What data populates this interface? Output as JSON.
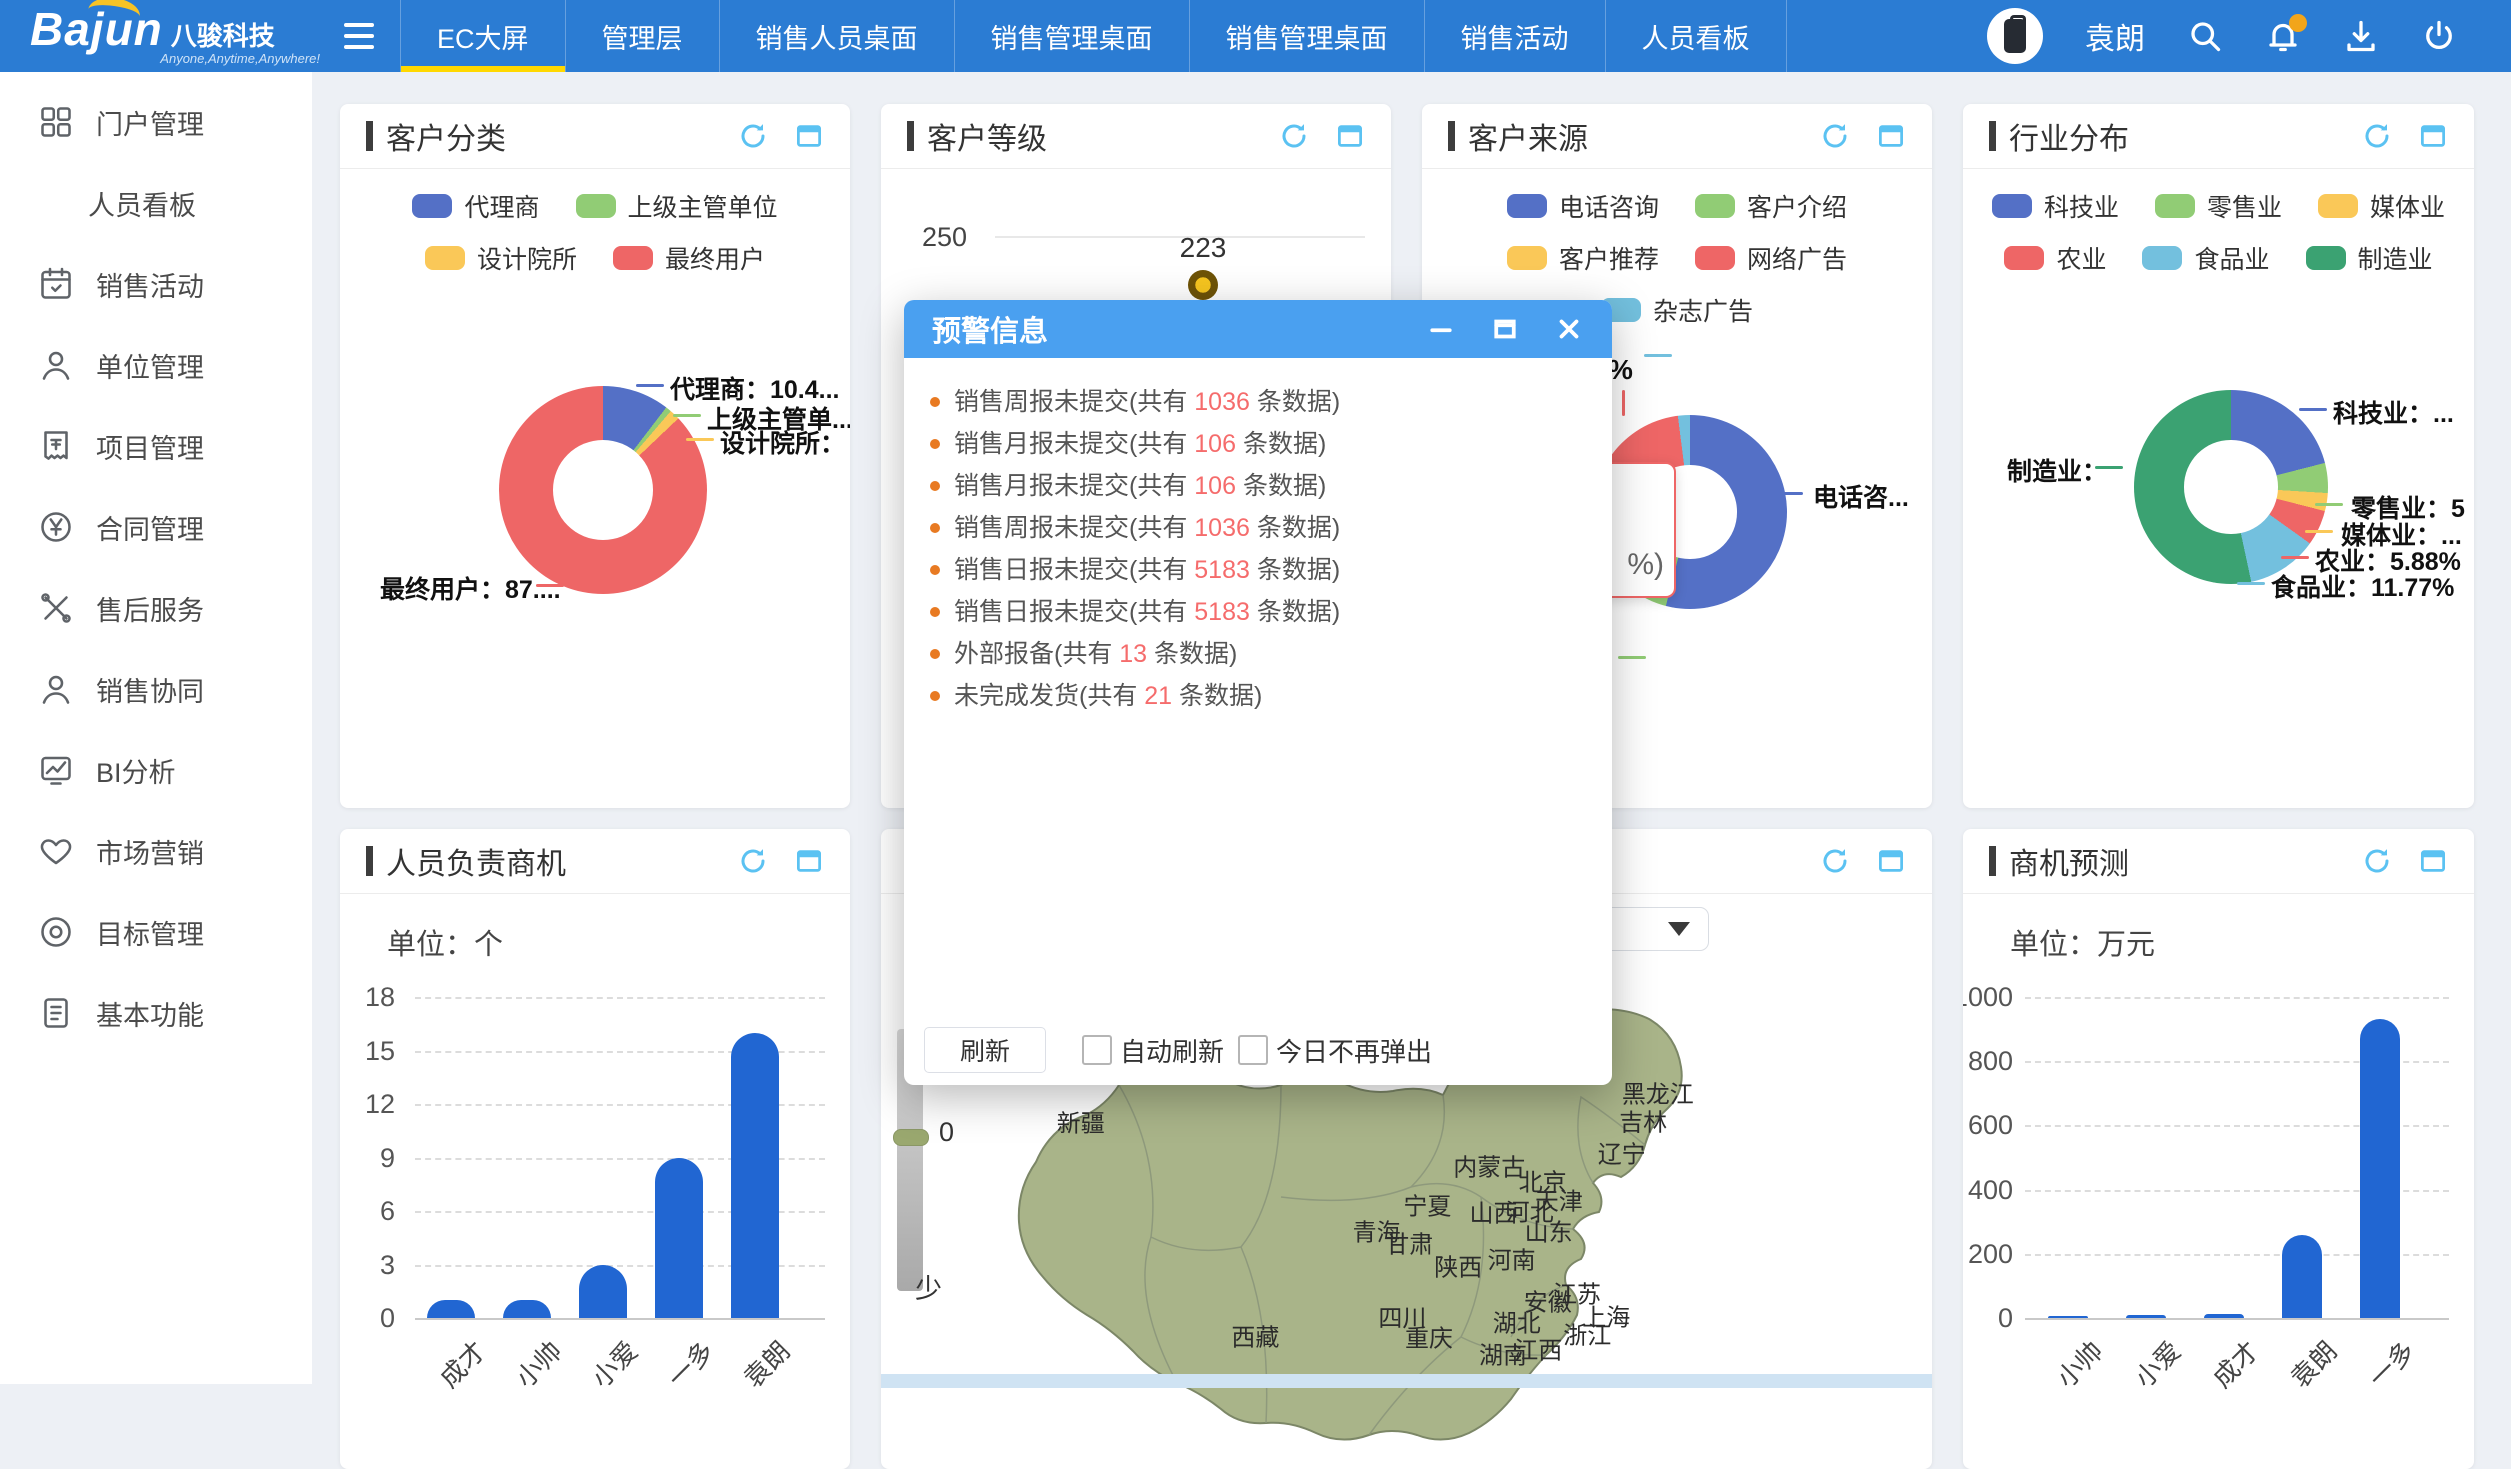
{
  "topbar": {
    "logo": {
      "brand": "Bajun",
      "brand_cn": "八骏科技",
      "tagline": "Anyone,Anytime,Anywhere!"
    },
    "tabs": [
      {
        "label": "EC大屏",
        "active": true
      },
      {
        "label": "管理层",
        "active": false
      },
      {
        "label": "销售人员桌面",
        "active": false
      },
      {
        "label": "销售管理桌面",
        "active": false
      },
      {
        "label": "销售管理桌面",
        "active": false
      },
      {
        "label": "销售活动",
        "active": false
      },
      {
        "label": "人员看板",
        "active": false
      }
    ],
    "user_name": "袁朗"
  },
  "sidebar": {
    "items": [
      {
        "label": "门户管理",
        "icon": "grid-icon",
        "sub": false
      },
      {
        "label": "人员看板",
        "icon": "",
        "sub": true
      },
      {
        "label": "销售活动",
        "icon": "calendar-check-icon",
        "sub": false
      },
      {
        "label": "单位管理",
        "icon": "person-icon",
        "sub": false
      },
      {
        "label": "项目管理",
        "icon": "receipt-icon",
        "sub": false
      },
      {
        "label": "合同管理",
        "icon": "yen-circle-icon",
        "sub": false
      },
      {
        "label": "售后服务",
        "icon": "tools-icon",
        "sub": false
      },
      {
        "label": "销售协同",
        "icon": "person-icon",
        "sub": false
      },
      {
        "label": "BI分析",
        "icon": "chart-icon",
        "sub": false
      },
      {
        "label": "市场营销",
        "icon": "heart-icon",
        "sub": false
      },
      {
        "label": "目标管理",
        "icon": "target-icon",
        "sub": false
      },
      {
        "label": "基本功能",
        "icon": "document-icon",
        "sub": false
      }
    ]
  },
  "modal": {
    "title": "预警信息",
    "warnings": [
      {
        "prefix": "销售周报未提交(共有 ",
        "count": "1036",
        "suffix": " 条数据)"
      },
      {
        "prefix": "销售月报未提交(共有 ",
        "count": "106",
        "suffix": " 条数据)"
      },
      {
        "prefix": "销售月报未提交(共有 ",
        "count": "106",
        "suffix": " 条数据)"
      },
      {
        "prefix": "销售周报未提交(共有 ",
        "count": "1036",
        "suffix": " 条数据)"
      },
      {
        "prefix": "销售日报未提交(共有 ",
        "count": "5183",
        "suffix": " 条数据)"
      },
      {
        "prefix": "销售日报未提交(共有 ",
        "count": "5183",
        "suffix": " 条数据)"
      },
      {
        "prefix": "外部报备(共有 ",
        "count": "13",
        "suffix": " 条数据)"
      },
      {
        "prefix": "未完成发货(共有 ",
        "count": "21",
        "suffix": " 条数据)"
      }
    ],
    "refresh_button": "刷新",
    "auto_refresh_label": "自动刷新",
    "no_popup_label": "今日不再弹出"
  },
  "chart_data": [
    {
      "id": "customer_category",
      "type": "pie",
      "title": "客户分类",
      "legend": [
        "代理商",
        "上级主管单位",
        "设计院所",
        "最终用户"
      ],
      "series": [
        {
          "name": "代理商",
          "value": 10.4
        },
        {
          "name": "上级主管单位",
          "value": 0.9
        },
        {
          "name": "设计院所",
          "value": 1.6
        },
        {
          "name": "最终用户",
          "value": 87.1
        }
      ],
      "unit": "%",
      "legend_position": "top",
      "callouts": [
        "代理商：10.4...",
        "上级主管单...",
        "设计院所：",
        "最终用户：87...."
      ]
    },
    {
      "id": "customer_level",
      "type": "scatter",
      "title": "客户等级",
      "visible_ytick": "250",
      "visible_point_label": "223",
      "visible_point_value": 223
    },
    {
      "id": "customer_source",
      "type": "pie",
      "title": "客户来源",
      "legend": [
        "电话咨询",
        "客户介绍",
        "客户推荐",
        "网络广告",
        "杂志广告"
      ],
      "series": [
        {
          "name": "电话咨询",
          "value": 54
        },
        {
          "name": "客户介绍",
          "value": 8
        },
        {
          "name": "客户推荐",
          "value": 12
        },
        {
          "name": "网络广告",
          "value": 24
        },
        {
          "name": "杂志广告",
          "value": 2
        }
      ],
      "unit": "%",
      "legend_position": "top",
      "callouts": [
        "电话咨..."
      ],
      "label_fragment": "%",
      "tooltip_fragment": "%)"
    },
    {
      "id": "industry",
      "type": "pie",
      "title": "行业分布",
      "legend": [
        "科技业",
        "零售业",
        "媒体业",
        "农业",
        "食品业",
        "制造业"
      ],
      "series": [
        {
          "name": "科技业",
          "value": 21
        },
        {
          "name": "零售业",
          "value": 5
        },
        {
          "name": "媒体业",
          "value": 3
        },
        {
          "name": "农业",
          "value": 5.88
        },
        {
          "name": "食品业",
          "value": 11.77
        },
        {
          "name": "制造业",
          "value": 53.35
        }
      ],
      "unit": "%",
      "legend_position": "top",
      "callouts": [
        "科技业：...",
        "制造业：",
        "零售业：5",
        "媒体业：...",
        "农业：5.88%",
        "食品业：11.77%"
      ]
    },
    {
      "id": "personnel_opportunity",
      "type": "bar",
      "title": "人员负责商机",
      "unit_label": "单位：个",
      "categories": [
        "成才",
        "小帅",
        "小爱",
        "一多",
        "袁朗"
      ],
      "values": [
        1,
        1,
        3,
        9,
        16
      ],
      "yticks": [
        18,
        15,
        12,
        9,
        6,
        3,
        0
      ],
      "ylim": [
        0,
        18
      ],
      "grid": "dashed"
    },
    {
      "id": "china_map",
      "type": "heatmap",
      "visual_zero": "0",
      "visual_min_label": "少",
      "provinces": [
        {
          "name": "新疆",
          "x": 11.6,
          "y": 27.6
        },
        {
          "name": "西藏",
          "x": 31.9,
          "y": 75.1
        },
        {
          "name": "青海",
          "x": 46.0,
          "y": 51.8
        },
        {
          "name": "甘肃",
          "x": 49.8,
          "y": 54.5
        },
        {
          "name": "宁夏",
          "x": 51.9,
          "y": 46.0
        },
        {
          "name": "内蒙古",
          "x": 59.1,
          "y": 37.3
        },
        {
          "name": "黑龙江",
          "x": 78.7,
          "y": 21.1
        },
        {
          "name": "吉林",
          "x": 77.0,
          "y": 27.3
        },
        {
          "name": "辽宁",
          "x": 74.5,
          "y": 34.4
        },
        {
          "name": "北京",
          "x": 65.3,
          "y": 40.7
        },
        {
          "name": "天津",
          "x": 67.2,
          "y": 44.9
        },
        {
          "name": "河北",
          "x": 63.8,
          "y": 47.3
        },
        {
          "name": "山西",
          "x": 59.6,
          "y": 47.6
        },
        {
          "name": "山东",
          "x": 66.0,
          "y": 51.8
        },
        {
          "name": "陕西",
          "x": 55.5,
          "y": 59.6
        },
        {
          "name": "河南",
          "x": 61.7,
          "y": 58.0
        },
        {
          "name": "安徽",
          "x": 65.9,
          "y": 67.3
        },
        {
          "name": "江苏",
          "x": 69.3,
          "y": 65.6
        },
        {
          "name": "上海",
          "x": 72.7,
          "y": 70.7
        },
        {
          "name": "浙江",
          "x": 70.5,
          "y": 74.6
        },
        {
          "name": "湖北",
          "x": 62.3,
          "y": 72.0
        },
        {
          "name": "四川",
          "x": 49.0,
          "y": 70.9
        },
        {
          "name": "重庆",
          "x": 52.1,
          "y": 75.3
        },
        {
          "name": "湖南",
          "x": 60.7,
          "y": 79.1
        },
        {
          "name": "江西",
          "x": 64.8,
          "y": 78.0
        }
      ]
    },
    {
      "id": "opportunity_forecast",
      "type": "bar",
      "title": "商机预测",
      "unit_label": "单位：万元",
      "categories": [
        "小帅",
        "小爱",
        "成才",
        "袁朗",
        "一多"
      ],
      "values": [
        3,
        8,
        12,
        260,
        930
      ],
      "yticks": [
        1000,
        800,
        600,
        400,
        200,
        0
      ],
      "ylim": [
        0,
        1000
      ],
      "grid": "dashed"
    }
  ],
  "colors": {
    "pie_palette": [
      "#5470c6",
      "#91cc75",
      "#fac858",
      "#ee6666",
      "#73c0de",
      "#3ba272"
    ],
    "bar_blue": "#2166d2",
    "topbar_blue": "#2b7cd3",
    "modal_header_blue": "#4aa0f0",
    "active_tab_yellow": "#ffd800",
    "warn_bullet_orange": "#e87a22",
    "warn_count_red": "#f56c6c",
    "card_icon_blue": "#5bc2f2",
    "map_fill_olive": "#a9b489"
  }
}
